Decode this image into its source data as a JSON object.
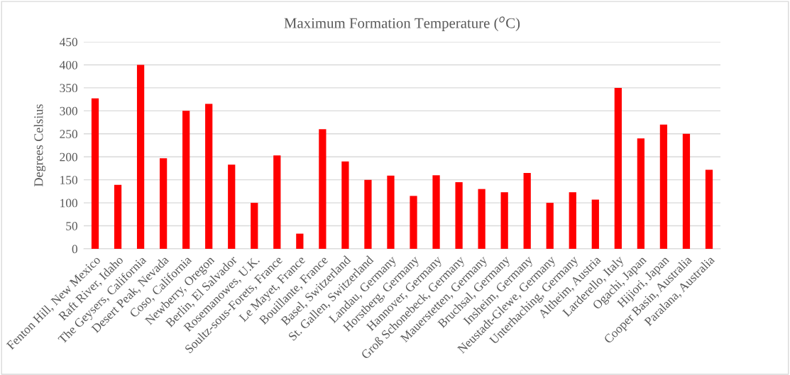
{
  "chart_data": {
    "type": "bar",
    "title": "Maximum Formation Temperature ($^{o}$C)",
    "ylabel": "Degrees Celsius",
    "categories": [
      "Fenton Hill, New Mexico",
      "Raft River, Idaho",
      "The Geysers, California",
      "Desert Peak, Nevada",
      "Coso, California",
      "Newberry, Oregon",
      "Berlin, El Salvador",
      "Rosemanowes, U.K.",
      "Soultz-sous-Forets, France",
      "Le Mayet, France",
      "Bouillante, France",
      "Basel, Switzerland",
      "St. Gallen, Switzerland",
      "Landau, Germany",
      "Horstberg, Germany",
      "Hannover, Germany",
      "Groß Schonebeck, Germany",
      "Mauerstetten, Germany",
      "Bruchsal, Germany",
      "Insheim, Germany",
      "Neustadt-Glewe, Germany",
      "Unterhaching, Germany",
      "Altheim, Austria",
      "Larderello, Italy",
      "Ogachi, Japan",
      "Hijiori, Japan",
      "Cooper Basin, Australia",
      "Paralana, Australia"
    ],
    "values": [
      327,
      139,
      400,
      197,
      300,
      315,
      183,
      100,
      203,
      33,
      260,
      190,
      150,
      159,
      115,
      160,
      145,
      130,
      123,
      165,
      100,
      123,
      107,
      350,
      240,
      270,
      250,
      172
    ],
    "color": "#ff0000",
    "ylim": [
      0,
      450
    ],
    "yticks": [
      0,
      50,
      100,
      150,
      200,
      250,
      300,
      350,
      400,
      450
    ],
    "grid": "y",
    "legend": false
  }
}
